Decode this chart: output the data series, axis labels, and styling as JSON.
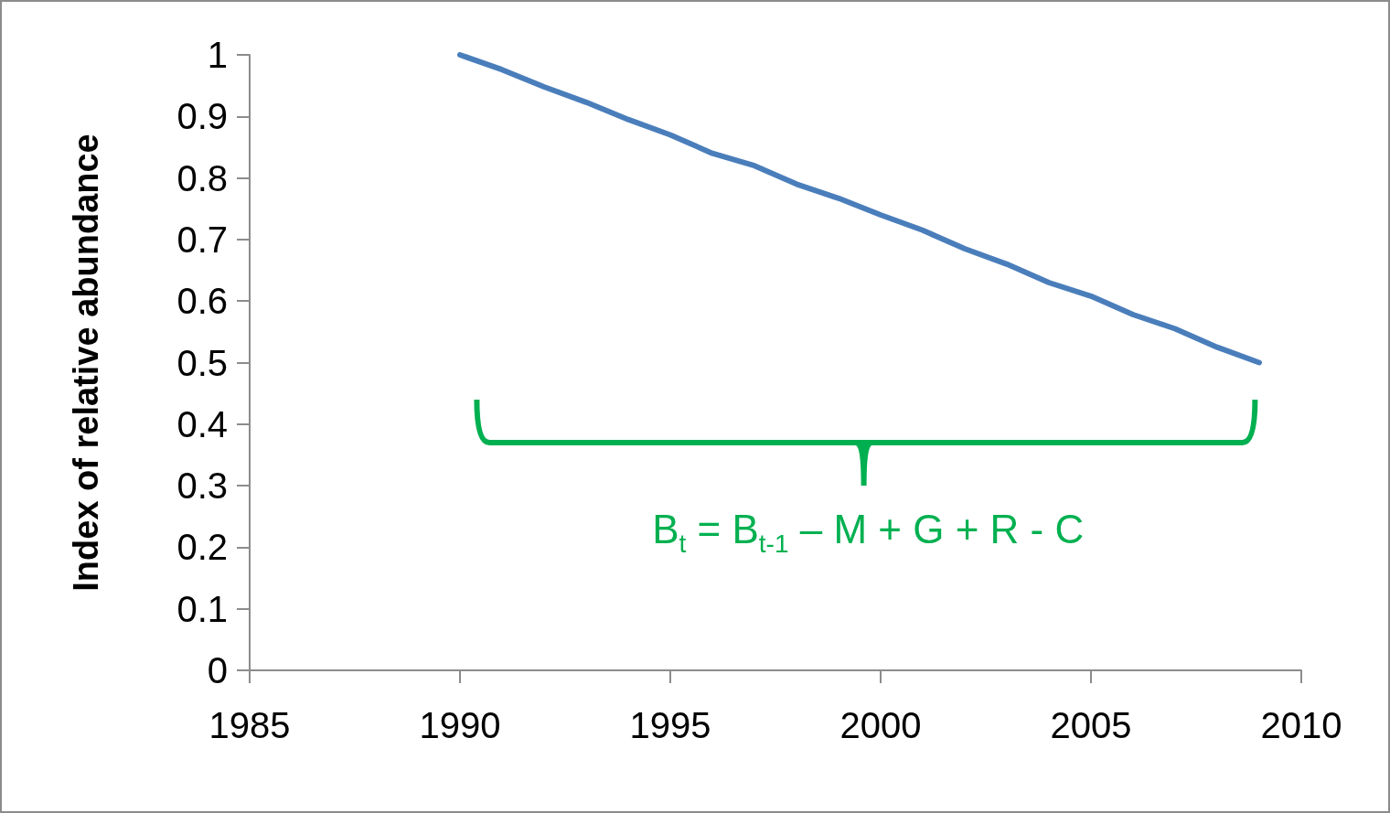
{
  "chart_data": {
    "type": "line",
    "ylabel": "Index of relative abundance",
    "x": [
      1990,
      1991,
      1992,
      1993,
      1994,
      1995,
      1996,
      1997,
      1998,
      1999,
      2000,
      2001,
      2002,
      2003,
      2004,
      2005,
      2006,
      2007,
      2008,
      2009
    ],
    "series": [
      {
        "color": "#4a7ebb",
        "values": [
          1.0,
          0.976,
          0.948,
          0.923,
          0.895,
          0.87,
          0.84,
          0.82,
          0.79,
          0.767,
          0.74,
          0.715,
          0.685,
          0.66,
          0.63,
          0.608,
          0.578,
          0.555,
          0.525,
          0.5
        ]
      }
    ],
    "xlim": [
      1985,
      2010
    ],
    "xticks": [
      1985,
      1990,
      1995,
      2000,
      2005,
      2010
    ],
    "ylim": [
      0,
      1
    ],
    "yticks": [
      0,
      0.1,
      0.2,
      0.3,
      0.4,
      0.5,
      0.6,
      0.7,
      0.8,
      0.9,
      1
    ],
    "grid": false,
    "marker": "none",
    "line_style": "solid",
    "annotations": [
      "B$_{t}$ = B$_{t-1}$ – M + G + R - C"
    ]
  }
}
